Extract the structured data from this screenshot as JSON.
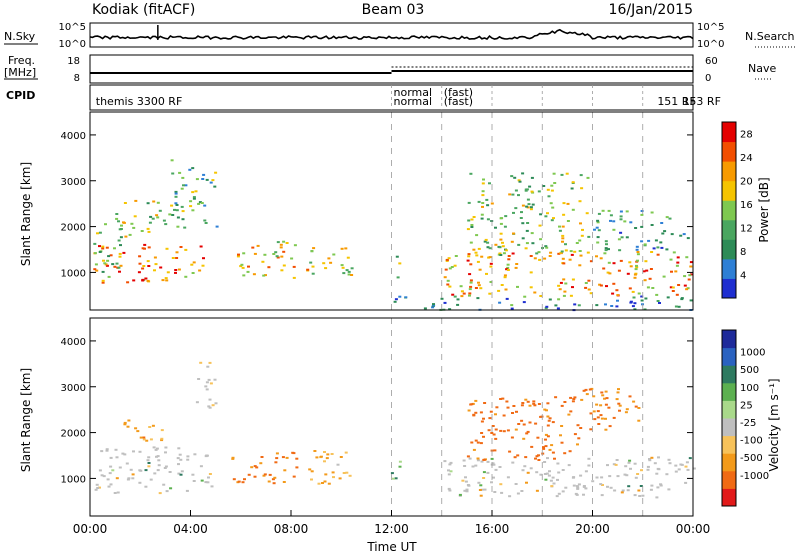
{
  "header": {
    "station": "Kodiak (fitACF)",
    "beam": "Beam 03",
    "date": "16/Jan/2015"
  },
  "status_panels": {
    "nsky_label": "N.Sky",
    "nsearch_label": "N.Search",
    "nsky_ticks": [
      "10^5",
      "10^0"
    ],
    "nsearch_ticks": [
      "10^5",
      "10^0"
    ],
    "freq_label_1": "Freq.",
    "freq_label_2": "[MHz]",
    "freq_ticks": [
      "18",
      "8"
    ],
    "nave_label": "Nave",
    "nave_ticks": [
      "60",
      "0"
    ],
    "cpid_label": "CPID",
    "cpid_entries": [
      {
        "name": "themis 3300 RF",
        "time": 0.15
      },
      {
        "name": "normal",
        "time": 12.0
      },
      {
        "name": "normal",
        "time": 12.0
      },
      {
        "name": "(fast)",
        "time": 14.0
      },
      {
        "name": "(fast)",
        "time": 14.0
      },
      {
        "name": "151 RF",
        "time": 22.5
      },
      {
        "name": "153 RF",
        "time": 23.5
      }
    ]
  },
  "colorbars": {
    "power_title": "Power [dB]",
    "velocity_title": "Velocity [m s⁻¹]"
  },
  "x_axis_title": "Time UT",
  "colors": {
    "ground_scatter": "#bfbfbf",
    "power_scale": [
      "#1f2fd0",
      "#2e7fd5",
      "#2d8b57",
      "#4aa660",
      "#7ec850",
      "#f5c400",
      "#f79a00",
      "#f24e00",
      "#e40000"
    ],
    "velocity_scale": [
      "#1e2a9a",
      "#2a62c0",
      "#2e7a60",
      "#5cb050",
      "#a9d98a",
      "#bfbfbf",
      "#f7c25a",
      "#f39a1a",
      "#f06a14",
      "#e21a1a"
    ]
  },
  "chart_data": [
    {
      "type": "heatmap",
      "panel": "power",
      "xlabel": "",
      "ylabel": "Slant Range [km]",
      "xlim": [
        0,
        24
      ],
      "ylim": [
        180,
        4500
      ],
      "x_ticks": [
        "00:00",
        "04:00",
        "08:00",
        "12:00",
        "16:00",
        "20:00",
        "00:00"
      ],
      "y_ticks": [
        1000,
        2000,
        3000,
        4000
      ],
      "colorbar": {
        "label": "Power [dB]",
        "ticks": [
          4,
          8,
          12,
          16,
          20,
          24,
          28
        ],
        "range": [
          0,
          30
        ]
      },
      "cpid_change_times": [
        12,
        14,
        16,
        18,
        20,
        22
      ],
      "echo_regions": [
        {
          "t0": 0.1,
          "t1": 4.5,
          "r0": 780,
          "r1": 1650,
          "power": 24
        },
        {
          "t0": 0.1,
          "t1": 1.2,
          "r0": 1000,
          "r1": 2200,
          "power": 14
        },
        {
          "t0": 1.0,
          "t1": 3.2,
          "r0": 1800,
          "r1": 2600,
          "power": 16
        },
        {
          "t0": 3.2,
          "t1": 5.0,
          "r0": 2000,
          "r1": 3500,
          "power": 12
        },
        {
          "t0": 5.6,
          "t1": 8.2,
          "r0": 900,
          "r1": 1700,
          "power": 20
        },
        {
          "t0": 8.6,
          "t1": 10.4,
          "r0": 900,
          "r1": 1700,
          "power": 18
        },
        {
          "t0": 11.9,
          "t1": 12.3,
          "r0": 900,
          "r1": 1400,
          "power": 12
        },
        {
          "t0": 14.0,
          "t1": 24.0,
          "r0": 500,
          "r1": 1500,
          "power": 22
        },
        {
          "t0": 15.0,
          "t1": 19.8,
          "r0": 1400,
          "r1": 3200,
          "power": 14
        },
        {
          "t0": 20.0,
          "t1": 23.8,
          "r0": 1500,
          "r1": 2400,
          "power": 8
        },
        {
          "t0": 12.0,
          "t1": 24.0,
          "r0": 200,
          "r1": 500,
          "power": 6
        }
      ]
    },
    {
      "type": "heatmap",
      "panel": "velocity",
      "xlabel": "Time UT",
      "ylabel": "Slant Range [km]",
      "xlim": [
        0,
        24
      ],
      "ylim": [
        180,
        4500
      ],
      "x_ticks": [
        "00:00",
        "04:00",
        "08:00",
        "12:00",
        "16:00",
        "20:00",
        "00:00"
      ],
      "y_ticks": [
        1000,
        2000,
        3000,
        4000
      ],
      "colorbar": {
        "label": "Velocity [m s⁻¹]",
        "ticks": [
          1000,
          500,
          100,
          25,
          -25,
          -100,
          -500,
          -1000
        ]
      },
      "echo_regions": [
        {
          "t0": 0.1,
          "t1": 4.8,
          "r0": 700,
          "r1": 1700,
          "velocity": 0,
          "ground_scatter": true
        },
        {
          "t0": 4.2,
          "t1": 5.0,
          "r0": 2500,
          "r1": 3600,
          "velocity": 0,
          "ground_scatter": true
        },
        {
          "t0": 1.2,
          "t1": 3.0,
          "r0": 1800,
          "r1": 2300,
          "velocity": -200
        },
        {
          "t0": 5.6,
          "t1": 8.2,
          "r0": 900,
          "r1": 1600,
          "velocity": -300
        },
        {
          "t0": 8.6,
          "t1": 10.4,
          "r0": 900,
          "r1": 1700,
          "velocity": -150
        },
        {
          "t0": 11.8,
          "t1": 12.5,
          "r0": 1000,
          "r1": 1400,
          "velocity": 150
        },
        {
          "t0": 14.0,
          "t1": 24.0,
          "r0": 600,
          "r1": 1500,
          "velocity": 0,
          "ground_scatter": true
        },
        {
          "t0": 15.0,
          "t1": 19.5,
          "r0": 1400,
          "r1": 2800,
          "velocity": -400
        },
        {
          "t0": 19.5,
          "t1": 21.8,
          "r0": 2000,
          "r1": 3000,
          "velocity": -300
        }
      ]
    }
  ]
}
